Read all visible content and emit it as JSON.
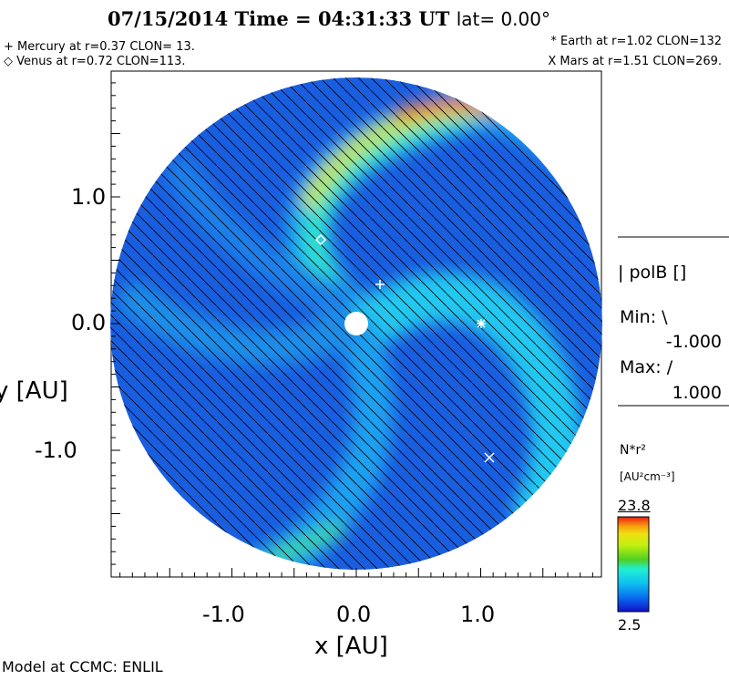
{
  "header": {
    "title": "07/15/2014 Time = 04:31:33 UT",
    "lat": "lat= 0.00°"
  },
  "planets": {
    "mercury": "+ Mercury at r=0.37 CLON= 13.",
    "venus": "◇ Venus at r=0.72 CLON=113.",
    "earth": "* Earth at  r=1.02 CLON=132",
    "mars": "X Mars at r=1.51 CLON=269."
  },
  "legend": {
    "polb_label": "| polB []",
    "min_label": "Min: \\",
    "min_value": "-1.000",
    "max_label": "Max: /",
    "max_value": "1.000",
    "colorbar_title": "N*r²",
    "colorbar_units": "[AU²cm⁻³]",
    "colorbar_max": "23.8",
    "colorbar_min": "2.5"
  },
  "footer": "Model at CCMC: ENLIL",
  "chart_data": {
    "type": "heatmap",
    "title": "07/15/2014 Time = 04:31:33 UT lat= 0.00°",
    "xlabel": "x [AU]",
    "ylabel": "y [AU]",
    "xlim": [
      -2.0,
      2.0
    ],
    "ylim": [
      -2.0,
      2.0
    ],
    "xticks": [
      "-1.0",
      "0.0",
      "1.0"
    ],
    "yticks": [
      "1.0",
      "0.0",
      "-1.0"
    ],
    "colorbar": {
      "variable": "N*r²",
      "units": "AU²cm⁻³",
      "min": 2.5,
      "max": 23.8
    },
    "overlay": {
      "variable": "polB",
      "min": -1.0,
      "max": 1.0
    },
    "planets": [
      {
        "name": "Mercury",
        "r": 0.37,
        "clon": 13,
        "x": 0.19,
        "y": 0.31
      },
      {
        "name": "Venus",
        "r": 0.72,
        "clon": 113,
        "x": -0.28,
        "y": 0.67
      },
      {
        "name": "Earth",
        "r": 1.02,
        "clon": 132,
        "x": 1.0,
        "y": 0.0
      },
      {
        "name": "Mars",
        "r": 1.51,
        "clon": 269,
        "x": 1.07,
        "y": -1.06
      }
    ]
  }
}
